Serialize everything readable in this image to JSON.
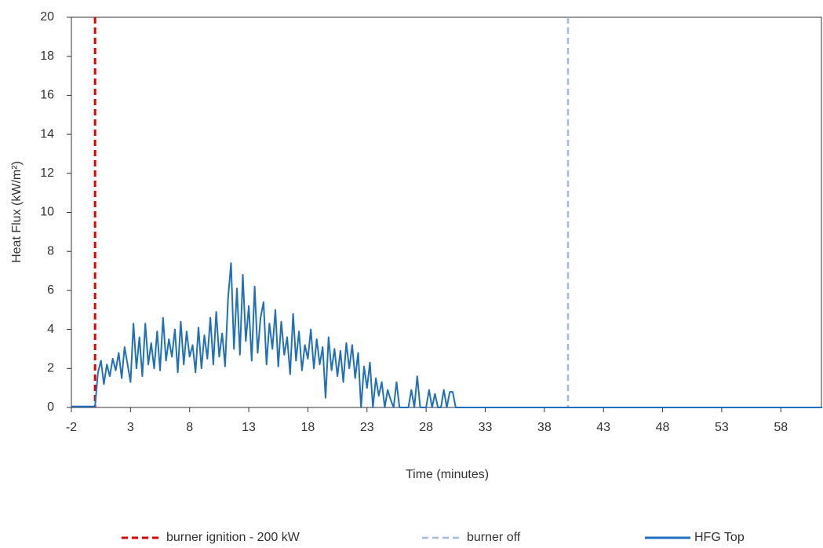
{
  "chart_data": {
    "type": "line",
    "xlabel": "Time (minutes)",
    "ylabel": "Heat Flux (kW/m²)",
    "xlim": [
      -2,
      61.5
    ],
    "ylim": [
      0,
      20
    ],
    "xticks": [
      -2,
      3,
      8,
      13,
      18,
      23,
      28,
      33,
      38,
      43,
      48,
      53,
      58
    ],
    "yticks": [
      0,
      2,
      4,
      6,
      8,
      10,
      12,
      14,
      16,
      18,
      20
    ],
    "vlines": [
      {
        "name": "burner ignition - 200 kW",
        "x": 0,
        "color": "#e00000"
      },
      {
        "name": "burner off",
        "x": 40,
        "color": "#a7b9dc"
      }
    ],
    "series": [
      {
        "name": "HFG Top",
        "color": "#1f6fc0",
        "x": [
          -2,
          -1,
          0,
          0.25,
          0.5,
          0.75,
          1,
          1.25,
          1.5,
          1.75,
          2,
          2.25,
          2.5,
          2.75,
          3,
          3.25,
          3.5,
          3.75,
          4,
          4.25,
          4.5,
          4.75,
          5,
          5.25,
          5.5,
          5.75,
          6,
          6.25,
          6.5,
          6.75,
          7,
          7.25,
          7.5,
          7.75,
          8,
          8.25,
          8.5,
          8.75,
          9,
          9.25,
          9.5,
          9.75,
          10,
          10.25,
          10.5,
          10.75,
          11,
          11.25,
          11.5,
          11.75,
          12,
          12.25,
          12.5,
          12.75,
          13,
          13.25,
          13.5,
          13.75,
          14,
          14.25,
          14.5,
          14.75,
          15,
          15.25,
          15.5,
          15.75,
          16,
          16.25,
          16.5,
          16.75,
          17,
          17.25,
          17.5,
          17.75,
          18,
          18.25,
          18.5,
          18.75,
          19,
          19.25,
          19.5,
          19.75,
          20,
          20.25,
          20.5,
          20.75,
          21,
          21.25,
          21.5,
          21.75,
          22,
          22.25,
          22.5,
          22.75,
          23,
          23.25,
          23.5,
          23.75,
          24,
          24.25,
          24.5,
          24.75,
          25,
          25.25,
          25.5,
          25.75,
          26,
          26.25,
          26.5,
          26.75,
          27,
          27.25,
          27.5,
          27.75,
          28,
          28.25,
          28.5,
          28.75,
          29,
          29.25,
          29.5,
          29.75,
          30,
          30.25,
          30.5,
          61.5
        ],
        "values": [
          0.05,
          0.05,
          0.05,
          1.8,
          2.4,
          1.2,
          2.2,
          1.6,
          2.5,
          1.9,
          2.8,
          1.5,
          3.1,
          2.2,
          1.3,
          4.3,
          2.0,
          3.6,
          1.6,
          4.3,
          2.2,
          3.3,
          2.0,
          3.9,
          1.9,
          4.6,
          2.4,
          3.5,
          2.6,
          4.0,
          1.8,
          4.4,
          2.2,
          3.9,
          2.6,
          3.2,
          1.8,
          4.1,
          2.0,
          3.7,
          2.5,
          4.6,
          2.2,
          4.9,
          2.6,
          3.8,
          2.1,
          5.6,
          7.4,
          3.0,
          6.1,
          2.7,
          6.8,
          3.4,
          5.2,
          2.4,
          6.2,
          2.8,
          4.6,
          5.4,
          2.2,
          4.3,
          3.0,
          5.0,
          2.1,
          4.4,
          2.7,
          3.6,
          1.7,
          4.8,
          2.4,
          3.9,
          1.9,
          3.2,
          2.5,
          4.0,
          2.0,
          3.5,
          2.2,
          3.1,
          0.5,
          3.6,
          1.9,
          3.0,
          1.6,
          2.9,
          1.3,
          3.3,
          2.0,
          3.2,
          1.5,
          2.8,
          0,
          2.1,
          1.0,
          2.3,
          0,
          1.5,
          0.6,
          1.3,
          0,
          0.9,
          0.4,
          0,
          1.3,
          0,
          0,
          0,
          0,
          0.9,
          0,
          1.6,
          0,
          0,
          0,
          0.9,
          0,
          0.7,
          0,
          0,
          0.9,
          0,
          0.8,
          0.8,
          0,
          0
        ]
      }
    ]
  }
}
